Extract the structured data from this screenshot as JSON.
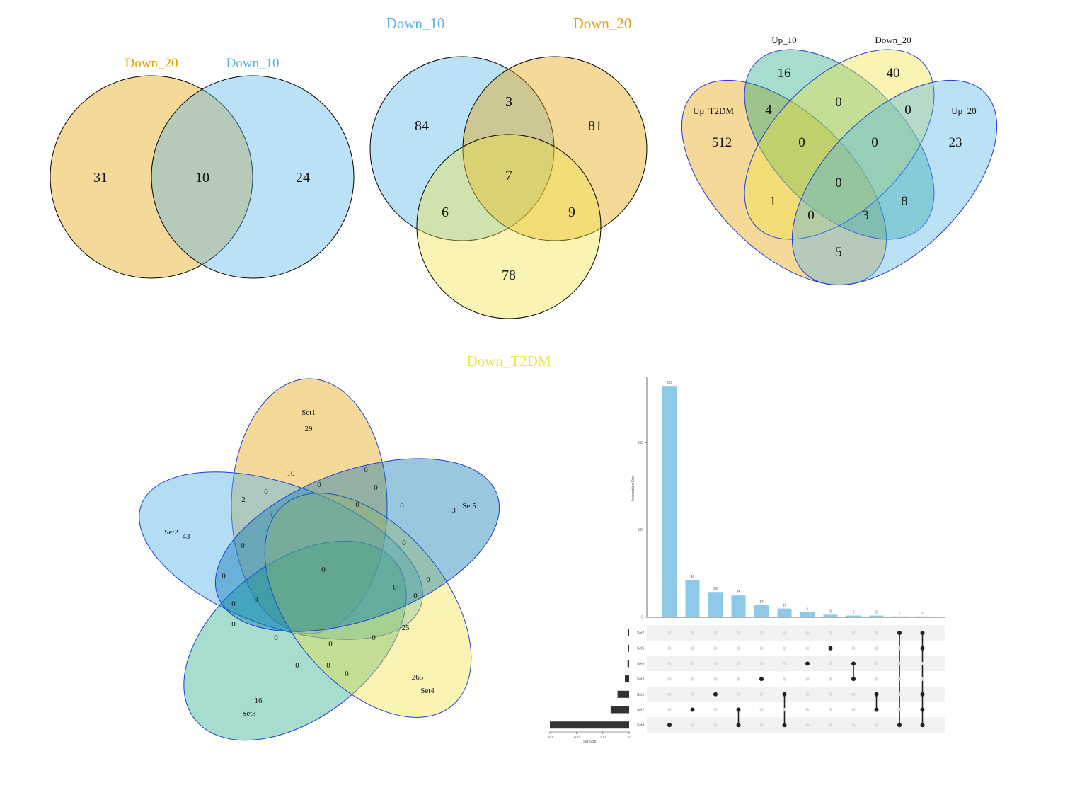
{
  "colors": {
    "orange": "#E69F00",
    "blue": "#56B4E9",
    "yellow": "#F0E442",
    "green": "#009E73",
    "navy": "#0072B2",
    "outline_black": "#000000",
    "outline_blue": "#1F3BD6",
    "bar_fill": "#8EC9E8",
    "dot_dark": "#222222",
    "dot_light": "#DDDDDD"
  },
  "venn2": {
    "labels": [
      "Down_20",
      "Down_10"
    ],
    "counts": {
      "only_a": "31",
      "ab": "10",
      "only_b": "24"
    }
  },
  "venn3": {
    "labels": [
      "Down_10",
      "Down_20",
      "Down_T2DM"
    ],
    "counts": {
      "a": "84",
      "b": "81",
      "c": "78",
      "ab": "3",
      "ac": "6",
      "bc": "9",
      "abc": "7"
    }
  },
  "venn4": {
    "labels": [
      "Up_T2DM",
      "Up_10",
      "Down_20",
      "Up_20"
    ],
    "counts": [
      "512",
      "16",
      "40",
      "23",
      "4",
      "0",
      "0",
      "0",
      "0",
      "0",
      "1",
      "0",
      "8",
      "3",
      "5"
    ]
  },
  "venn5": {
    "labels": [
      "Set1",
      "Set2",
      "Set3",
      "Set4",
      "Set5"
    ],
    "counts": [
      "29",
      "43",
      "16",
      "265",
      "3",
      "10",
      "0",
      "0",
      "2",
      "0",
      "1",
      "0",
      "0",
      "0",
      "0",
      "0",
      "0",
      "0",
      "0",
      "0",
      "0",
      "25",
      "0",
      "0",
      "0",
      "0",
      "0",
      "0",
      "0",
      "0",
      "0"
    ]
  },
  "upset": {
    "ylabel": "Intersection Size",
    "xlabel": "Set Size",
    "y_ticks": [
      "0",
      "100",
      "200"
    ],
    "x_ticks": [
      "300",
      "200",
      "100",
      "0"
    ],
    "sets": [
      "Set7",
      "Set5",
      "Set6",
      "Set3",
      "Set1",
      "Set2",
      "Set4"
    ],
    "set_sizes": [
      1,
      3,
      6,
      16,
      44,
      70,
      300
    ],
    "intersections": [
      {
        "value": 265,
        "label": "265",
        "members": [
          6
        ]
      },
      {
        "value": 43,
        "label": "43",
        "members": [
          5
        ]
      },
      {
        "value": 29,
        "label": "29",
        "members": [
          4
        ]
      },
      {
        "value": 25,
        "label": "25",
        "members": [
          5,
          6
        ]
      },
      {
        "value": 14,
        "label": "14",
        "members": [
          3
        ]
      },
      {
        "value": 10,
        "label": "10",
        "members": [
          4,
          6
        ]
      },
      {
        "value": 6,
        "label": "6",
        "members": [
          2
        ]
      },
      {
        "value": 3,
        "label": "3",
        "members": [
          1
        ]
      },
      {
        "value": 2,
        "label": "2",
        "members": [
          2,
          3
        ]
      },
      {
        "value": 2,
        "label": "2",
        "members": [
          4,
          5
        ]
      },
      {
        "value": 1,
        "label": "1",
        "members": [
          0,
          6
        ]
      },
      {
        "value": 1,
        "label": "1",
        "members": [
          0,
          1,
          4,
          5,
          6
        ]
      }
    ]
  }
}
